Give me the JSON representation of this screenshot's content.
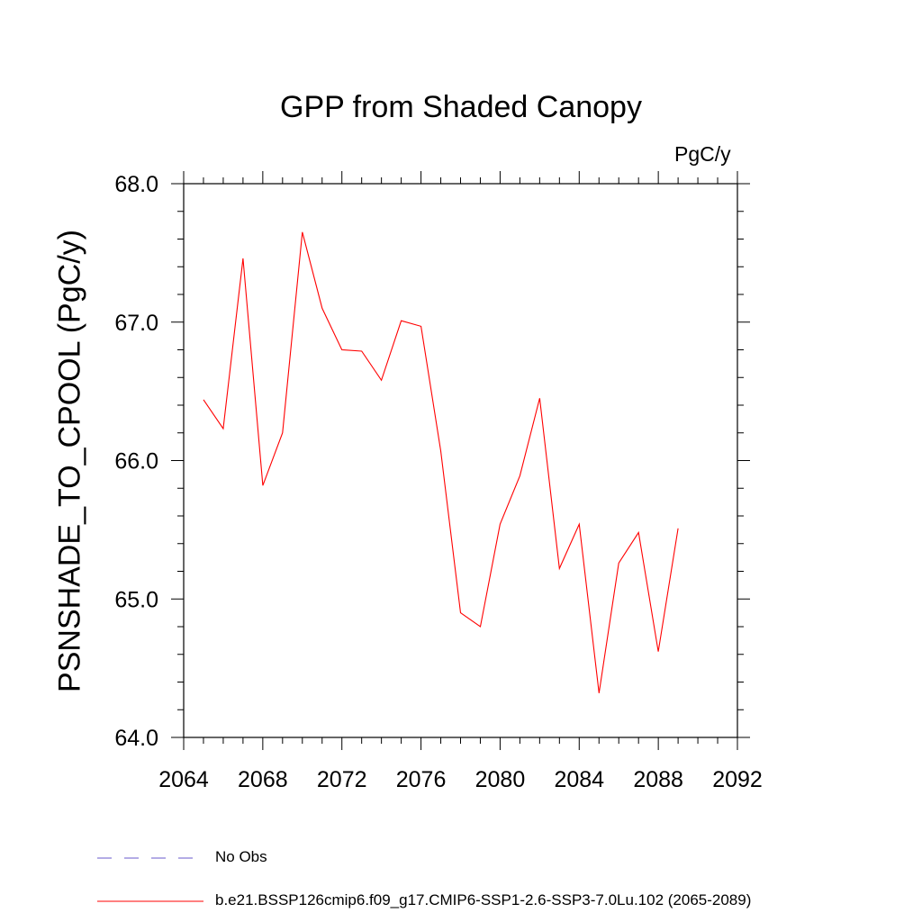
{
  "chart_data": {
    "type": "line",
    "title": "GPP from Shaded Canopy",
    "units": "PgC/y",
    "ylabel": "PSNSHADE_TO_CPOOL  (PgC/y)",
    "xlabel": "",
    "xlim": [
      2064,
      2092
    ],
    "ylim": [
      64.0,
      68.0
    ],
    "x_ticks": [
      "2064",
      "2068",
      "2072",
      "2076",
      "2080",
      "2084",
      "2088",
      "2092"
    ],
    "y_ticks": [
      "64.0",
      "65.0",
      "66.0",
      "67.0",
      "68.0"
    ],
    "series": [
      {
        "name": "b.e21.BSSP126cmip6.f09_g17.CMIP6-SSP1-2.6-SSP3-7.0Lu.102 (2065-2089)",
        "color": "#ff0000",
        "style": "solid",
        "x": [
          2065,
          2066,
          2067,
          2068,
          2069,
          2070,
          2071,
          2072,
          2073,
          2074,
          2075,
          2076,
          2077,
          2078,
          2079,
          2080,
          2081,
          2082,
          2083,
          2084,
          2085,
          2086,
          2087,
          2088,
          2089
        ],
        "y": [
          66.44,
          66.23,
          67.46,
          65.82,
          66.2,
          67.65,
          67.1,
          66.8,
          66.79,
          66.58,
          67.01,
          66.97,
          66.07,
          64.9,
          64.8,
          65.54,
          65.89,
          66.45,
          65.22,
          65.54,
          64.32,
          65.26,
          65.48,
          64.62,
          65.51
        ]
      }
    ],
    "legend": [
      {
        "label": "No Obs",
        "color": "#6a5acd",
        "style": "dashed"
      },
      {
        "label": "b.e21.BSSP126cmip6.f09_g17.CMIP6-SSP1-2.6-SSP3-7.0Lu.102 (2065-2089)",
        "color": "#ff0000",
        "style": "solid"
      }
    ]
  }
}
